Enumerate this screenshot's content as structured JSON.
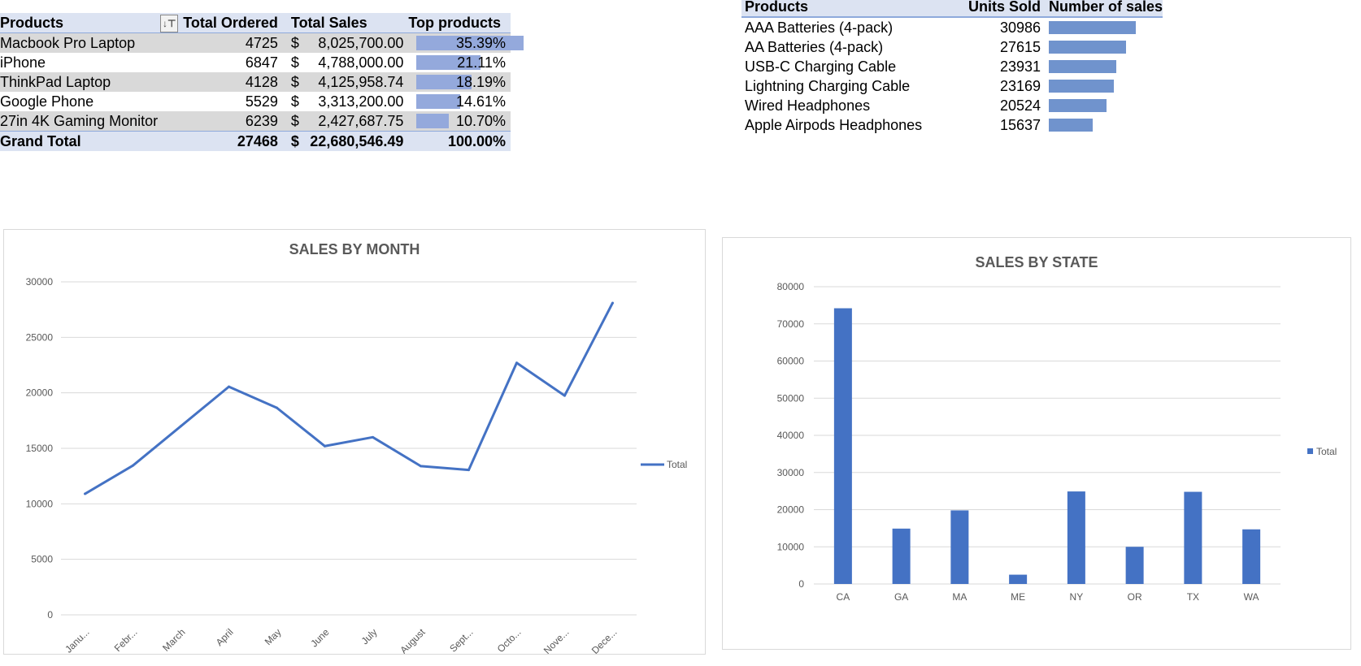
{
  "pivot": {
    "headers": {
      "products": "Products",
      "ordered": "Total Ordered",
      "sales": "Total Sales",
      "top": "Top products"
    },
    "rows": [
      {
        "product": "Macbook Pro Laptop",
        "ordered": "4725",
        "currency": "$",
        "sales": "8,025,700.00",
        "top": "35.39%"
      },
      {
        "product": "iPhone",
        "ordered": "6847",
        "currency": "$",
        "sales": "4,788,000.00",
        "top": "21.11%"
      },
      {
        "product": "ThinkPad Laptop",
        "ordered": "4128",
        "currency": "$",
        "sales": "4,125,958.74",
        "top": "18.19%"
      },
      {
        "product": "Google Phone",
        "ordered": "5529",
        "currency": "$",
        "sales": "3,313,200.00",
        "top": "14.61%"
      },
      {
        "product": "27in 4K Gaming Monitor",
        "ordered": "6239",
        "currency": "$",
        "sales": "2,427,687.75",
        "top": "10.70%"
      }
    ],
    "total": {
      "label": "Grand Total",
      "ordered": "27468",
      "currency": "$",
      "sales": "22,680,546.49",
      "top": "100.00%"
    },
    "bar_color": "#94a9dc"
  },
  "units": {
    "headers": {
      "products": "Products",
      "units": "Units Sold",
      "sales": "Number of sales"
    },
    "rows": [
      {
        "product": "AAA Batteries (4-pack)",
        "units": "30986"
      },
      {
        "product": "AA Batteries (4-pack)",
        "units": "27615"
      },
      {
        "product": "USB-C Charging Cable",
        "units": "23931"
      },
      {
        "product": "Lightning Charging Cable",
        "units": "23169"
      },
      {
        "product": "Wired Headphones",
        "units": "20524"
      },
      {
        "product": "Apple Airpods Headphones",
        "units": "15637"
      }
    ],
    "bar_color": "#7093cd"
  },
  "chart_data": [
    {
      "type": "line",
      "title": "SALES BY MONTH",
      "categories": [
        "Janu...",
        "Febr...",
        "March",
        "April",
        "May",
        "June",
        "July",
        "August",
        "Sept...",
        "Octo...",
        "Nove...",
        "Dece..."
      ],
      "series": [
        {
          "name": "Total",
          "values": [
            10900,
            13450,
            17000,
            20550,
            18650,
            15200,
            16000,
            13400,
            13050,
            22700,
            19750,
            28100
          ]
        }
      ],
      "ylim": [
        0,
        30000
      ],
      "yticks": [
        0,
        5000,
        10000,
        15000,
        20000,
        25000,
        30000
      ],
      "grid": true,
      "legend": "right",
      "color": "#4472c4"
    },
    {
      "type": "bar",
      "title": "SALES BY STATE",
      "categories": [
        "CA",
        "GA",
        "MA",
        "ME",
        "NY",
        "OR",
        "TX",
        "WA"
      ],
      "series": [
        {
          "name": "Total",
          "values": [
            74200,
            14900,
            19800,
            2500,
            24900,
            10000,
            24800,
            14700
          ]
        }
      ],
      "ylim": [
        0,
        80000
      ],
      "yticks": [
        0,
        10000,
        20000,
        30000,
        40000,
        50000,
        60000,
        70000,
        80000
      ],
      "grid": true,
      "legend": "right",
      "color": "#4472c4"
    }
  ]
}
